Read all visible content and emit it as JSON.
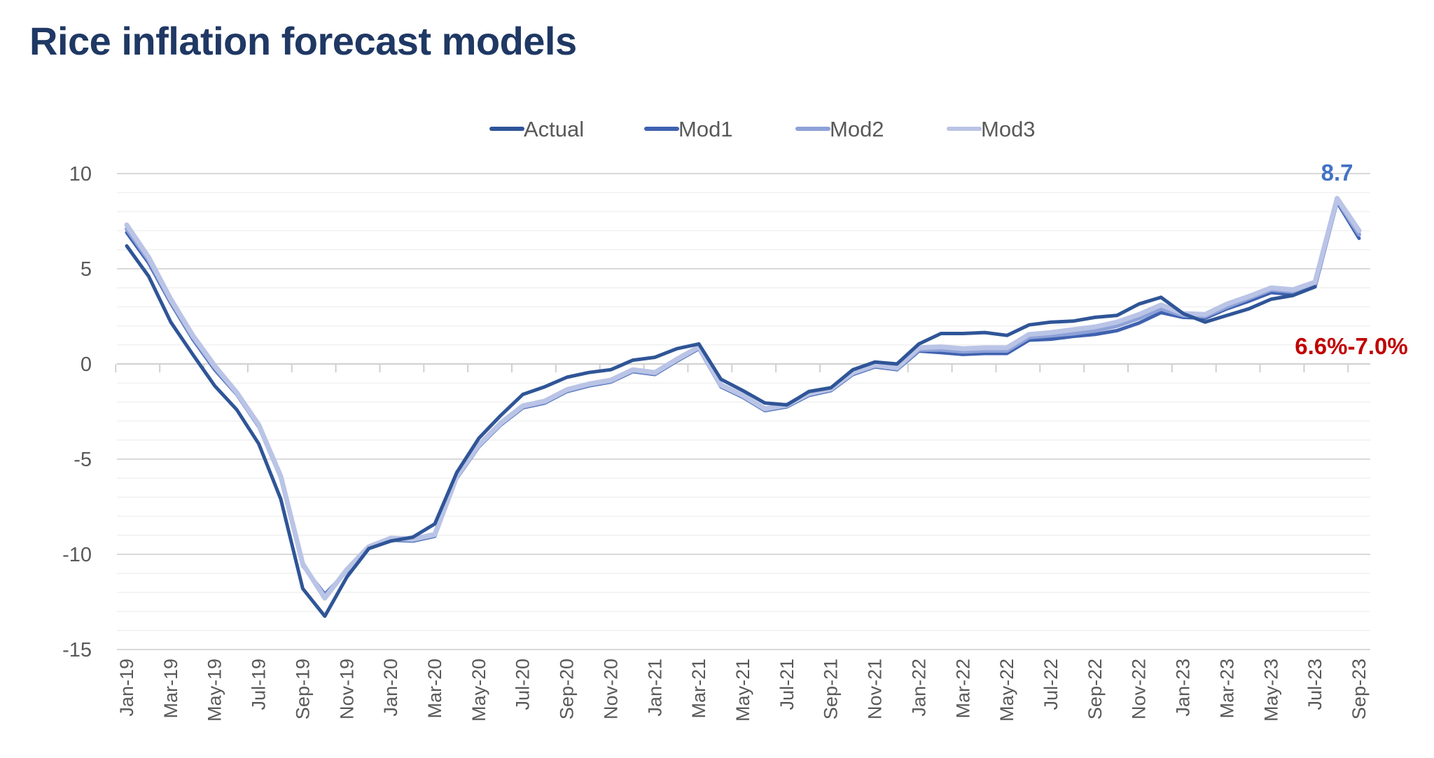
{
  "title": "Rice inflation forecast models",
  "chart_data": {
    "type": "line",
    "title": "Rice inflation forecast models",
    "xlabel": "",
    "ylabel": "",
    "ylim": [
      -15,
      10
    ],
    "yticks": [
      10,
      5,
      0,
      -5,
      -10,
      -15
    ],
    "grid": true,
    "minor_grid_step": 1,
    "legend_position": "top",
    "x": [
      "Jan-19",
      "Feb-19",
      "Mar-19",
      "Apr-19",
      "May-19",
      "Jun-19",
      "Jul-19",
      "Aug-19",
      "Sep-19",
      "Oct-19",
      "Nov-19",
      "Dec-19",
      "Jan-20",
      "Feb-20",
      "Mar-20",
      "Apr-20",
      "May-20",
      "Jun-20",
      "Jul-20",
      "Aug-20",
      "Sep-20",
      "Oct-20",
      "Nov-20",
      "Dec-20",
      "Jan-21",
      "Feb-21",
      "Mar-21",
      "Apr-21",
      "May-21",
      "Jun-21",
      "Jul-21",
      "Aug-21",
      "Sep-21",
      "Oct-21",
      "Nov-21",
      "Dec-21",
      "Jan-22",
      "Feb-22",
      "Mar-22",
      "Apr-22",
      "May-22",
      "Jun-22",
      "Jul-22",
      "Aug-22",
      "Sep-22",
      "Oct-22",
      "Nov-22",
      "Dec-22",
      "Jan-23",
      "Feb-23",
      "Mar-23",
      "Apr-23",
      "May-23",
      "Jun-23",
      "Jul-23",
      "Aug-23",
      "Sep-23"
    ],
    "tick_labels": [
      "Jan-19",
      "Mar-19",
      "May-19",
      "Jul-19",
      "Sep-19",
      "Nov-19",
      "Jan-20",
      "Mar-20",
      "May-20",
      "Jul-20",
      "Sep-20",
      "Nov-20",
      "Jan-21",
      "Mar-21",
      "May-21",
      "Jul-21",
      "Sep-21",
      "Nov-21",
      "Jan-22",
      "Mar-22",
      "May-22",
      "Jul-22",
      "Sep-22",
      "Nov-22",
      "Jan-23",
      "Mar-23",
      "May-23",
      "Jul-23",
      "Sep-23"
    ],
    "series": [
      {
        "name": "Actual",
        "color": "#2F5597",
        "values": [
          6.2,
          4.6,
          2.2,
          0.5,
          -1.15,
          -2.4,
          -4.2,
          -7.1,
          -11.8,
          -13.25,
          -11.2,
          -9.7,
          -9.3,
          -9.1,
          -8.4,
          -5.7,
          -3.9,
          -2.7,
          -1.6,
          -1.2,
          -0.7,
          -0.45,
          -0.3,
          0.2,
          0.35,
          0.8,
          1.05,
          -0.8,
          -1.4,
          -2.05,
          -2.15,
          -1.45,
          -1.25,
          -0.3,
          0.1,
          0.0,
          1.05,
          1.6,
          1.6,
          1.65,
          1.5,
          2.05,
          2.2,
          2.25,
          2.45,
          2.55,
          3.15,
          3.5,
          2.65,
          2.2,
          2.55,
          2.9,
          3.4,
          3.6,
          4.05,
          null,
          null
        ]
      },
      {
        "name": "Mod1",
        "color": "#3F62B0",
        "values": [
          6.9,
          5.3,
          3.2,
          1.3,
          -0.3,
          -1.6,
          -3.3,
          -6.0,
          -10.6,
          -12.1,
          -10.9,
          -9.7,
          -9.25,
          -9.3,
          -9.05,
          -6.0,
          -4.35,
          -3.2,
          -2.3,
          -2.05,
          -1.45,
          -1.15,
          -0.95,
          -0.4,
          -0.55,
          0.15,
          0.8,
          -1.2,
          -1.75,
          -2.45,
          -2.25,
          -1.65,
          -1.4,
          -0.55,
          -0.15,
          -0.3,
          0.68,
          0.6,
          0.5,
          0.55,
          0.55,
          1.25,
          1.3,
          1.45,
          1.55,
          1.75,
          2.15,
          2.7,
          2.45,
          2.4,
          2.9,
          3.3,
          3.75,
          3.65,
          4.05,
          8.5,
          6.6
        ]
      },
      {
        "name": "Mod2",
        "color": "#8EA2D8",
        "values": [
          7.1,
          5.45,
          3.3,
          1.4,
          -0.2,
          -1.55,
          -3.25,
          -5.95,
          -10.55,
          -12.2,
          -10.85,
          -9.65,
          -9.2,
          -9.25,
          -9.0,
          -5.95,
          -4.3,
          -3.15,
          -2.25,
          -2.0,
          -1.4,
          -1.1,
          -0.9,
          -0.35,
          -0.5,
          0.2,
          0.85,
          -1.15,
          -1.7,
          -2.4,
          -2.2,
          -1.6,
          -1.35,
          -0.5,
          -0.1,
          -0.25,
          0.75,
          0.75,
          0.65,
          0.7,
          0.7,
          1.4,
          1.5,
          1.6,
          1.75,
          2.0,
          2.4,
          2.9,
          2.55,
          2.5,
          3.0,
          3.45,
          3.9,
          3.8,
          4.2,
          8.6,
          6.8
        ]
      },
      {
        "name": "Mod3",
        "color": "#BAC4E6",
        "values": [
          7.3,
          5.6,
          3.4,
          1.5,
          -0.1,
          -1.5,
          -3.2,
          -5.9,
          -10.5,
          -12.3,
          -10.8,
          -9.6,
          -9.15,
          -9.2,
          -8.95,
          -5.9,
          -4.25,
          -3.1,
          -2.2,
          -1.95,
          -1.35,
          -1.05,
          -0.85,
          -0.3,
          -0.45,
          0.25,
          0.9,
          -1.1,
          -1.65,
          -2.35,
          -2.15,
          -1.55,
          -1.3,
          -0.45,
          -0.05,
          -0.2,
          0.85,
          0.9,
          0.8,
          0.85,
          0.85,
          1.55,
          1.65,
          1.8,
          1.95,
          2.2,
          2.6,
          3.1,
          2.65,
          2.6,
          3.15,
          3.55,
          4.0,
          3.9,
          4.3,
          8.7,
          7.0
        ]
      }
    ],
    "annotations": [
      {
        "text": "8.7",
        "x": "Aug-23",
        "color": "#4472C4"
      },
      {
        "text": "6.6%-7.0%",
        "x": "Sep-23",
        "color": "#C00000"
      }
    ]
  }
}
